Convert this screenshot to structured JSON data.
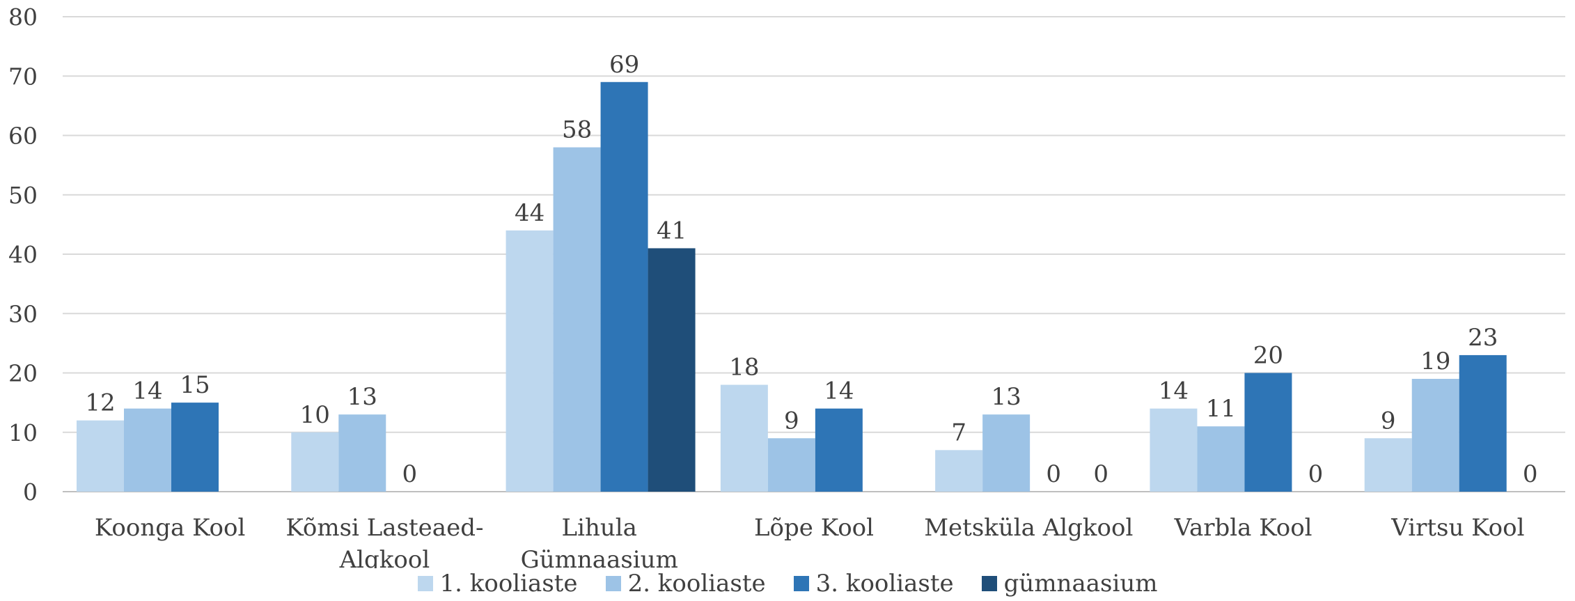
{
  "chart_data": {
    "type": "bar",
    "categories": [
      [
        "Koonga Kool"
      ],
      [
        "Kõmsi Lasteaed-",
        "Algkool"
      ],
      [
        "Lihula",
        "Gümnaasium"
      ],
      [
        "Lõpe Kool"
      ],
      [
        "Metsküla Algkool"
      ],
      [
        "Varbla Kool"
      ],
      [
        "Virtsu Kool"
      ]
    ],
    "series": [
      {
        "name": "1. kooliaste",
        "color": "#BDD7EE",
        "values": [
          12,
          10,
          44,
          18,
          7,
          14,
          9
        ]
      },
      {
        "name": "2. kooliaste",
        "color": "#9DC3E6",
        "values": [
          14,
          13,
          58,
          9,
          13,
          11,
          19
        ]
      },
      {
        "name": "3. kooliaste",
        "color": "#2E75B6",
        "values": [
          15,
          0,
          69,
          14,
          0,
          20,
          23
        ]
      },
      {
        "name": "gümnaasium",
        "color": "#1F4E79",
        "values": [
          null,
          null,
          41,
          null,
          0,
          0,
          0
        ]
      }
    ],
    "ylim": [
      0,
      80
    ],
    "yticks": [
      0,
      10,
      20,
      30,
      40,
      50,
      60,
      70,
      80
    ],
    "grid": true,
    "legend_position": "bottom",
    "title": "",
    "xlabel": "",
    "ylabel": ""
  }
}
